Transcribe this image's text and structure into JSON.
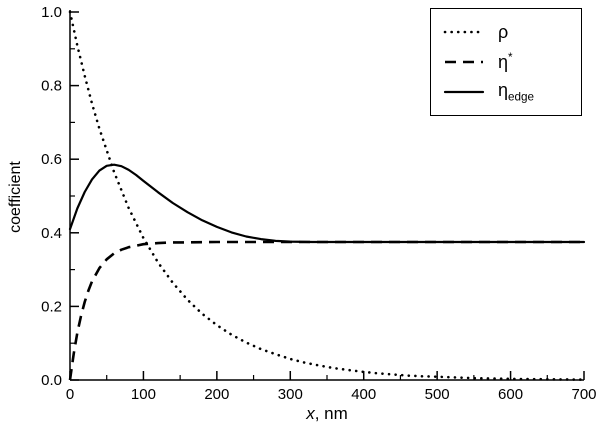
{
  "figure": {
    "background": "#ffffff",
    "axis_color": "#000000",
    "line_color": "#000000"
  },
  "axes": {
    "x_label_prefix": "x",
    "x_label_suffix": ", nm",
    "y_label": "coefficient"
  },
  "legend": {
    "items": [
      {
        "label": "ρ",
        "style": "dotted"
      },
      {
        "base": "η",
        "sup": "*",
        "style": "dashed"
      },
      {
        "base": "η",
        "sub": "edge",
        "style": "solid"
      }
    ]
  },
  "chart_data": {
    "type": "line",
    "title": "",
    "xlabel": "x, nm",
    "ylabel": "coefficient",
    "xlim": [
      0,
      700
    ],
    "ylim": [
      0,
      1
    ],
    "xticks": [
      0,
      100,
      200,
      300,
      400,
      500,
      600,
      700
    ],
    "xticklabels": [
      "0",
      "100",
      "200",
      "300",
      "400",
      "500",
      "600",
      "700"
    ],
    "yticks": [
      0,
      0.2,
      0.4,
      0.6,
      0.8,
      1.0
    ],
    "yticklabels": [
      "0.0",
      "0.2",
      "0.4",
      "0.6",
      "0.8",
      "1.0"
    ],
    "xminor": [
      50,
      150,
      250,
      350,
      450,
      550,
      650
    ],
    "yminor": [
      0.1,
      0.3,
      0.5,
      0.7,
      0.9
    ],
    "grid": false,
    "legend_position": "top-right",
    "series": [
      {
        "id": "rho",
        "name": "ρ",
        "line": "dotted",
        "color": "#000000",
        "x": [
          0,
          5,
          10,
          20,
          30,
          40,
          60,
          80,
          100,
          120,
          140,
          160,
          180,
          200,
          220,
          240,
          260,
          280,
          300,
          320,
          340,
          360,
          380,
          400,
          420,
          440,
          460,
          480,
          500,
          550,
          600,
          650,
          700
        ],
        "y": [
          1.0,
          0.954,
          0.909,
          0.827,
          0.751,
          0.683,
          0.565,
          0.467,
          0.386,
          0.319,
          0.264,
          0.218,
          0.18,
          0.149,
          0.123,
          0.102,
          0.084,
          0.07,
          0.057,
          0.047,
          0.039,
          0.032,
          0.027,
          0.022,
          0.018,
          0.015,
          0.012,
          0.01,
          0.009,
          0.005,
          0.003,
          0.002,
          0.001
        ]
      },
      {
        "id": "eta-star",
        "name": "η*",
        "line": "dashed",
        "color": "#000000",
        "x": [
          0,
          5,
          10,
          15,
          20,
          25,
          30,
          40,
          50,
          60,
          70,
          80,
          100,
          120,
          140,
          160,
          200,
          250,
          300,
          350,
          400,
          450,
          500,
          550,
          600,
          650,
          700
        ],
        "y": [
          0,
          0.071,
          0.128,
          0.174,
          0.212,
          0.243,
          0.268,
          0.304,
          0.328,
          0.344,
          0.354,
          0.361,
          0.369,
          0.372,
          0.374,
          0.374,
          0.375,
          0.375,
          0.375,
          0.375,
          0.375,
          0.375,
          0.375,
          0.375,
          0.375,
          0.375,
          0.375
        ]
      },
      {
        "id": "eta-edge",
        "name": "η_edge",
        "line": "solid",
        "color": "#000000",
        "x": [
          0,
          10,
          20,
          30,
          40,
          50,
          60,
          70,
          80,
          90,
          100,
          120,
          140,
          160,
          180,
          200,
          220,
          240,
          260,
          280,
          300,
          330,
          360,
          400,
          450,
          500,
          550,
          600,
          650,
          700
        ],
        "y": [
          0.41,
          0.466,
          0.511,
          0.545,
          0.569,
          0.582,
          0.585,
          0.581,
          0.571,
          0.557,
          0.541,
          0.51,
          0.481,
          0.456,
          0.434,
          0.416,
          0.401,
          0.39,
          0.383,
          0.378,
          0.376,
          0.375,
          0.375,
          0.375,
          0.375,
          0.375,
          0.375,
          0.375,
          0.375,
          0.375
        ]
      }
    ]
  }
}
